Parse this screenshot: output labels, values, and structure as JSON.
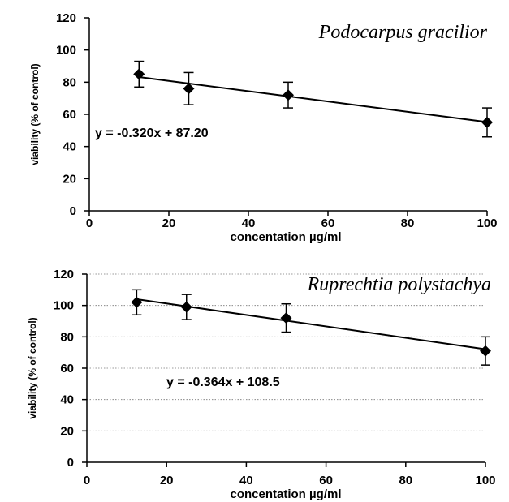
{
  "chart_data": [
    {
      "type": "scatter",
      "title": "Podocarpus gracilior",
      "xlabel": "concentation µg/ml",
      "ylabel": "viability (% of control)",
      "xlim": [
        0,
        100
      ],
      "ylim": [
        0,
        120
      ],
      "xticks": [
        0,
        20,
        40,
        60,
        80,
        100
      ],
      "yticks": [
        0,
        20,
        40,
        60,
        80,
        100,
        120
      ],
      "grid": false,
      "x": [
        12.5,
        25,
        50,
        100
      ],
      "y": [
        85,
        76,
        72,
        55
      ],
      "error": [
        8,
        10,
        8,
        9
      ],
      "trendline": {
        "slope": -0.32,
        "intercept": 87.2
      },
      "equation": "y = -0.320x  + 87.20",
      "color": "#000000"
    },
    {
      "type": "scatter",
      "title": "Ruprechtia polystachya",
      "xlabel": "concentation µg/ml",
      "ylabel": "viability (% of control)",
      "xlim": [
        0,
        100
      ],
      "ylim": [
        0,
        120
      ],
      "xticks": [
        0,
        20,
        40,
        60,
        80,
        100
      ],
      "yticks": [
        0,
        20,
        40,
        60,
        80,
        100,
        120
      ],
      "grid": true,
      "x": [
        12.5,
        25,
        50,
        100
      ],
      "y": [
        102,
        99,
        92,
        71
      ],
      "error": [
        8,
        8,
        9,
        9
      ],
      "trendline": {
        "slope": -0.364,
        "intercept": 108.5
      },
      "equation": "y = -0.364x  + 108.5",
      "color": "#000000"
    }
  ]
}
